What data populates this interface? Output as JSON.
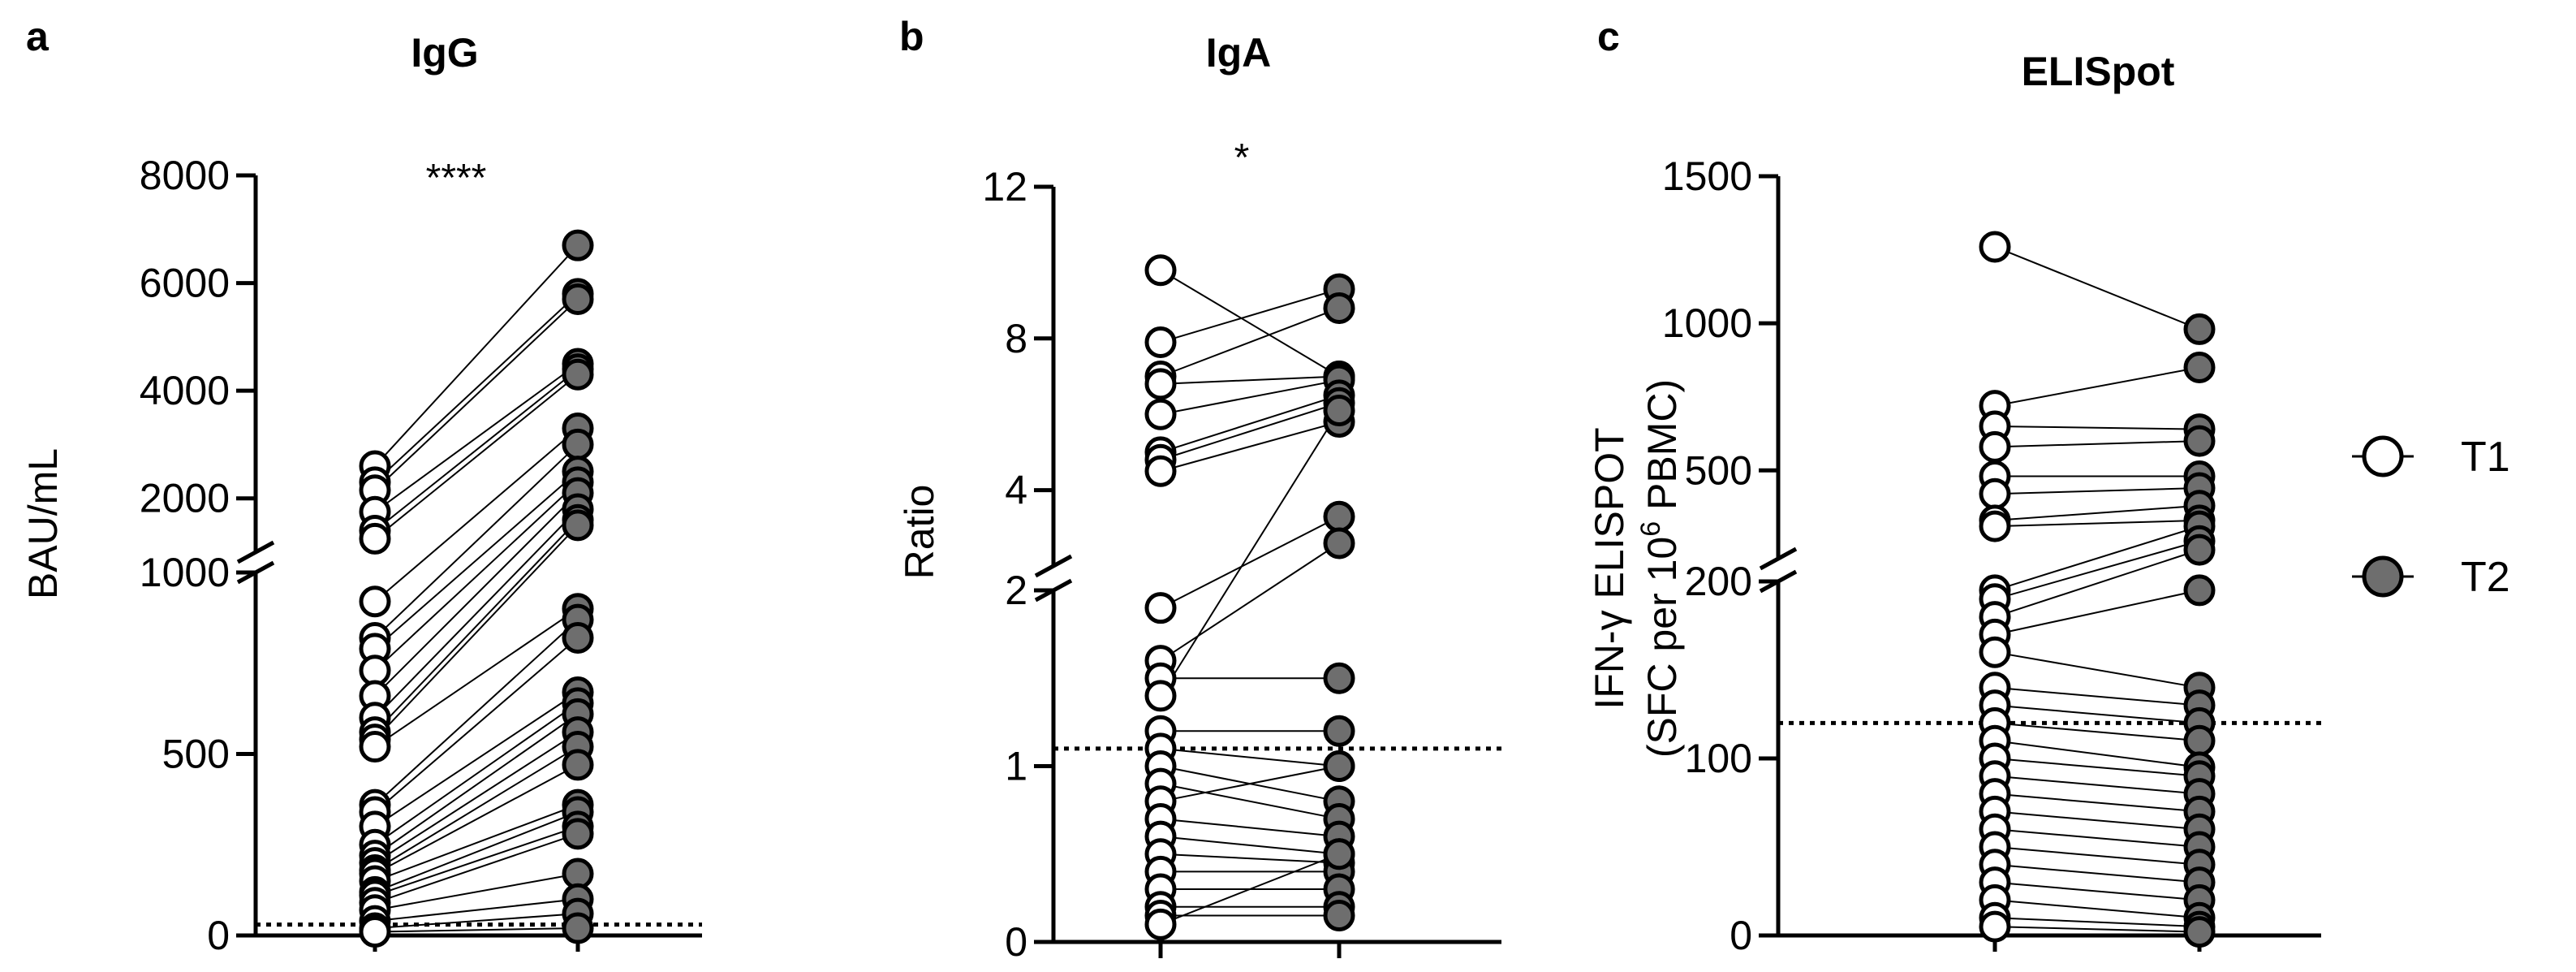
{
  "chart_data": [
    {
      "type": "scatter",
      "panel_label": "a",
      "title": "IgG",
      "ylabel": "BAU/mL",
      "x_groups": [
        "T1",
        "T2"
      ],
      "y_axis_broken": true,
      "break_at": 1000,
      "lower_segment": {
        "range": [
          0,
          1000
        ],
        "ticks": [
          0,
          500,
          1000
        ],
        "tick_labels": [
          "0",
          "500",
          "1000"
        ]
      },
      "upper_segment": {
        "range": [
          1000,
          8000
        ],
        "ticks": [
          2000,
          4000,
          6000,
          8000
        ],
        "tick_labels": [
          "2000",
          "4000",
          "6000",
          "8000"
        ]
      },
      "reference_line": 30,
      "significance": "****",
      "pairs": [
        [
          2600,
          6700
        ],
        [
          2300,
          5800
        ],
        [
          2150,
          5700
        ],
        [
          1750,
          4500
        ],
        [
          1400,
          4400
        ],
        [
          1250,
          4300
        ],
        [
          920,
          3300
        ],
        [
          820,
          3000
        ],
        [
          790,
          2500
        ],
        [
          730,
          2300
        ],
        [
          660,
          2100
        ],
        [
          600,
          1800
        ],
        [
          560,
          1600
        ],
        [
          540,
          1500
        ],
        [
          520,
          900
        ],
        [
          360,
          870
        ],
        [
          340,
          820
        ],
        [
          300,
          670
        ],
        [
          250,
          640
        ],
        [
          220,
          610
        ],
        [
          200,
          560
        ],
        [
          180,
          520
        ],
        [
          170,
          470
        ],
        [
          150,
          360
        ],
        [
          120,
          340
        ],
        [
          110,
          300
        ],
        [
          90,
          280
        ],
        [
          70,
          170
        ],
        [
          40,
          100
        ],
        [
          20,
          60
        ],
        [
          10,
          20
        ]
      ]
    },
    {
      "type": "scatter",
      "panel_label": "b",
      "title": "IgA",
      "ylabel": "Ratio",
      "x_groups": [
        "T1",
        "T2"
      ],
      "y_axis_broken": true,
      "break_at": 2,
      "lower_segment": {
        "range": [
          0,
          2
        ],
        "ticks": [
          0,
          1,
          2
        ],
        "tick_labels": [
          "0",
          "1",
          "2"
        ]
      },
      "upper_segment": {
        "range": [
          2,
          12
        ],
        "ticks": [
          4,
          8,
          12
        ],
        "tick_labels": [
          "4",
          "8",
          "12"
        ]
      },
      "reference_line": 1.1,
      "significance": "*",
      "pairs": [
        [
          9.8,
          7.0
        ],
        [
          7.9,
          9.3
        ],
        [
          7.0,
          8.8
        ],
        [
          6.8,
          7.0
        ],
        [
          6.0,
          6.9
        ],
        [
          5.0,
          6.5
        ],
        [
          4.8,
          6.3
        ],
        [
          4.5,
          5.8
        ],
        [
          1.9,
          3.3
        ],
        [
          1.6,
          2.6
        ],
        [
          1.5,
          1.5
        ],
        [
          1.4,
          6.1
        ],
        [
          1.2,
          1.2
        ],
        [
          1.1,
          1.0
        ],
        [
          1.0,
          0.8
        ],
        [
          0.9,
          0.7
        ],
        [
          0.8,
          1.0
        ],
        [
          0.7,
          0.6
        ],
        [
          0.6,
          0.5
        ],
        [
          0.5,
          0.45
        ],
        [
          0.4,
          0.4
        ],
        [
          0.3,
          0.3
        ],
        [
          0.2,
          0.2
        ],
        [
          0.15,
          0.15
        ],
        [
          0.1,
          0.5
        ]
      ]
    },
    {
      "type": "scatter",
      "panel_label": "c",
      "title": "ELISpot",
      "ylabel_line1": "IFN-γ ELISPOT",
      "ylabel_line2_prefix": "(SFC per 10",
      "ylabel_line2_sup": "6",
      "ylabel_line2_suffix": " PBMC)",
      "x_groups": [
        "T1",
        "T2"
      ],
      "y_axis_broken": true,
      "break_at": 200,
      "lower_segment": {
        "range": [
          0,
          200
        ],
        "ticks": [
          0,
          100,
          200
        ],
        "tick_labels": [
          "0",
          "100",
          "200"
        ]
      },
      "upper_segment": {
        "range": [
          200,
          1500
        ],
        "ticks": [
          500,
          1000,
          1500
        ],
        "tick_labels": [
          "500",
          "1000",
          "1500"
        ]
      },
      "reference_line": 120,
      "significance": "",
      "pairs": [
        [
          1260,
          980
        ],
        [
          720,
          850
        ],
        [
          650,
          640
        ],
        [
          580,
          600
        ],
        [
          480,
          480
        ],
        [
          420,
          440
        ],
        [
          330,
          380
        ],
        [
          310,
          330
        ],
        [
          195,
          310
        ],
        [
          190,
          260
        ],
        [
          180,
          230
        ],
        [
          170,
          195
        ],
        [
          160,
          140
        ],
        [
          140,
          130
        ],
        [
          130,
          120
        ],
        [
          120,
          110
        ],
        [
          110,
          95
        ],
        [
          100,
          90
        ],
        [
          90,
          80
        ],
        [
          80,
          70
        ],
        [
          70,
          60
        ],
        [
          60,
          50
        ],
        [
          50,
          40
        ],
        [
          40,
          30
        ],
        [
          30,
          20
        ],
        [
          20,
          10
        ],
        [
          10,
          5
        ],
        [
          5,
          2
        ]
      ]
    }
  ],
  "legend": [
    {
      "label": "T1",
      "fill": "#ffffff"
    },
    {
      "label": "T2",
      "fill": "#6e6e6e"
    }
  ],
  "colors": {
    "line": "#000000",
    "t1_fill": "#ffffff",
    "t2_fill": "#6e6e6e"
  }
}
